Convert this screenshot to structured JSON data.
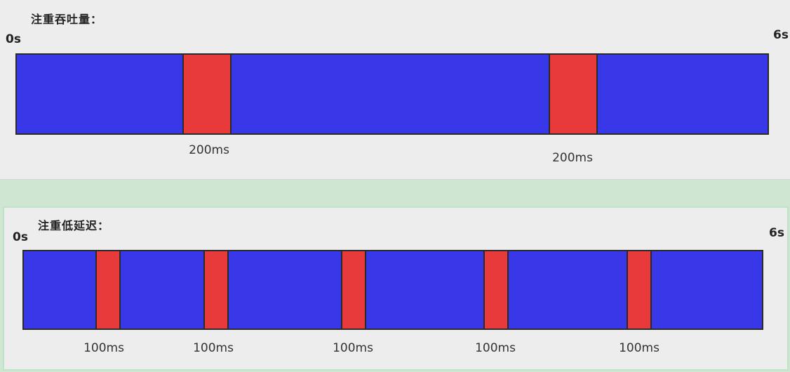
{
  "throughput": {
    "title": "注重吞吐量：",
    "start": "0s",
    "end": "6s",
    "pauses": [
      {
        "label": "200ms"
      },
      {
        "label": "200ms"
      }
    ]
  },
  "latency": {
    "title": "注重低延迟：",
    "start": "0s",
    "end": "6s",
    "pauses": [
      {
        "label": "100ms"
      },
      {
        "label": "100ms"
      },
      {
        "label": "100ms"
      },
      {
        "label": "100ms"
      },
      {
        "label": "100ms"
      }
    ]
  },
  "colors": {
    "run": "#3838e8",
    "pause": "#e83a3a"
  }
}
